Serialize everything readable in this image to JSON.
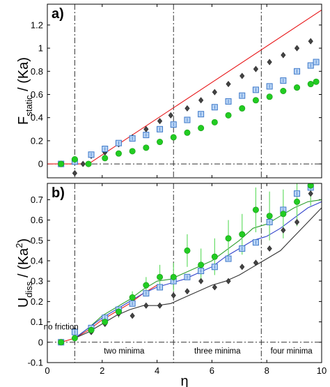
{
  "chart_data": [
    {
      "type": "scatter",
      "panel_label": "a)",
      "ylabel_main": "F",
      "ylabel_sub": "static",
      "ylabel_rest": " / (Ka)",
      "xlim": [
        0,
        10
      ],
      "ylim": [
        -0.12,
        1.38
      ],
      "xticks": [
        0,
        2,
        4,
        6,
        8,
        10
      ],
      "yticks": [
        0,
        0.2,
        0.4,
        0.6,
        0.8,
        1,
        1.2
      ],
      "ytick_labels": [
        "0",
        "0.2",
        "0.4",
        "0.6",
        "0.8",
        "1",
        "1.2"
      ],
      "vlines": [
        1.0,
        4.6,
        7.8
      ],
      "hline": 0,
      "series": [
        {
          "kind": "line",
          "color": "#e8191b",
          "points": [
            [
              0,
              0
            ],
            [
              1,
              0
            ],
            [
              1.5,
              0
            ],
            [
              10,
              1.33
            ]
          ]
        },
        {
          "kind": "diamond",
          "color": "#444444",
          "points": [
            [
              0.5,
              0.0
            ],
            [
              1.0,
              -0.08
            ],
            [
              1.3,
              0.0
            ],
            [
              1.6,
              0.07
            ],
            [
              2.1,
              0.1
            ],
            [
              2.6,
              0.17
            ],
            [
              3.1,
              0.23
            ],
            [
              3.6,
              0.3
            ],
            [
              4.1,
              0.37
            ],
            [
              4.5,
              0.42
            ],
            [
              5.1,
              0.48
            ],
            [
              5.6,
              0.55
            ],
            [
              6.1,
              0.62
            ],
            [
              6.6,
              0.69
            ],
            [
              7.1,
              0.76
            ],
            [
              7.6,
              0.82
            ],
            [
              8.1,
              0.88
            ],
            [
              8.6,
              0.94
            ],
            [
              9.1,
              1.0
            ],
            [
              9.6,
              1.06
            ]
          ]
        },
        {
          "kind": "square",
          "color": "#6aa0e0",
          "points": [
            [
              0.5,
              0.0
            ],
            [
              1.0,
              0.02
            ],
            [
              1.6,
              0.08
            ],
            [
              2.1,
              0.13
            ],
            [
              2.6,
              0.18
            ],
            [
              3.1,
              0.22
            ],
            [
              3.6,
              0.25
            ],
            [
              4.1,
              0.3
            ],
            [
              4.6,
              0.34
            ],
            [
              5.1,
              0.38
            ],
            [
              5.6,
              0.43
            ],
            [
              6.1,
              0.49
            ],
            [
              6.6,
              0.54
            ],
            [
              7.1,
              0.59
            ],
            [
              7.6,
              0.64
            ],
            [
              8.1,
              0.67
            ],
            [
              8.6,
              0.72
            ],
            [
              9.1,
              0.8
            ],
            [
              9.6,
              0.85
            ],
            [
              9.8,
              0.88
            ]
          ]
        },
        {
          "kind": "circle",
          "color": "#22cc22",
          "points": [
            [
              0.5,
              0.0
            ],
            [
              1.0,
              0.04
            ],
            [
              1.5,
              0.0
            ],
            [
              2.1,
              0.05
            ],
            [
              2.6,
              0.09
            ],
            [
              3.1,
              0.11
            ],
            [
              3.6,
              0.14
            ],
            [
              4.1,
              0.19
            ],
            [
              4.6,
              0.23
            ],
            [
              5.1,
              0.27
            ],
            [
              5.6,
              0.31
            ],
            [
              6.1,
              0.36
            ],
            [
              6.6,
              0.42
            ],
            [
              7.1,
              0.48
            ],
            [
              7.6,
              0.55
            ],
            [
              8.1,
              0.58
            ],
            [
              8.6,
              0.63
            ],
            [
              9.1,
              0.66
            ],
            [
              9.6,
              0.69
            ],
            [
              9.8,
              0.71
            ]
          ]
        }
      ]
    },
    {
      "type": "scatter",
      "panel_label": "b)",
      "xlabel": "η",
      "ylabel_main": "U",
      "ylabel_sub": "diss",
      "ylabel_rest": " / (Ka",
      "ylabel_sup": "2",
      "ylabel_end": ")",
      "xlim": [
        0,
        10
      ],
      "ylim": [
        -0.1,
        0.78
      ],
      "xticks": [
        0,
        2,
        4,
        6,
        8,
        10
      ],
      "xtick_labels": [
        "0",
        "2",
        "4",
        "6",
        "8",
        "10"
      ],
      "yticks": [
        -0.1,
        0,
        0.1,
        0.2,
        0.3,
        0.4,
        0.5,
        0.6,
        0.7
      ],
      "ytick_labels": [
        "-0.1",
        "0",
        "0.1",
        "0.2",
        "0.3",
        "0.4",
        "0.5",
        "0.6",
        "0.7"
      ],
      "vlines": [
        1.0,
        4.6,
        7.8
      ],
      "hline": 0,
      "region_labels": [
        "no friction",
        "two minima",
        "three minima",
        "four minima"
      ],
      "series": [
        {
          "kind": "line",
          "color": "#e8191b",
          "points": [
            [
              0.5,
              0.0
            ],
            [
              1.0,
              0.02
            ],
            [
              1.5,
              0.06
            ],
            [
              2.0,
              0.11
            ],
            [
              2.5,
              0.15
            ],
            [
              3.0,
              0.19
            ],
            [
              3.5,
              0.24
            ],
            [
              4.0,
              0.28
            ]
          ]
        },
        {
          "kind": "line",
          "color": "#2e9e2e",
          "points": [
            [
              1.0,
              0.02
            ],
            [
              1.5,
              0.07
            ],
            [
              2.0,
              0.13
            ],
            [
              2.5,
              0.17
            ],
            [
              3.0,
              0.21
            ],
            [
              3.5,
              0.26
            ],
            [
              4.0,
              0.3
            ],
            [
              4.5,
              0.31
            ],
            [
              5.0,
              0.34
            ],
            [
              5.5,
              0.37
            ],
            [
              6.0,
              0.4
            ],
            [
              6.5,
              0.45
            ],
            [
              7.0,
              0.5
            ],
            [
              7.5,
              0.56
            ],
            [
              8.0,
              0.58
            ],
            [
              8.5,
              0.62
            ],
            [
              9.0,
              0.66
            ],
            [
              9.5,
              0.69
            ],
            [
              10.0,
              0.7
            ]
          ]
        },
        {
          "kind": "line",
          "color": "#3344cc",
          "points": [
            [
              1.0,
              0.02
            ],
            [
              1.5,
              0.07
            ],
            [
              2.0,
              0.12
            ],
            [
              2.5,
              0.16
            ],
            [
              3.0,
              0.2
            ],
            [
              3.5,
              0.24
            ],
            [
              4.0,
              0.27
            ],
            [
              4.5,
              0.29
            ],
            [
              5.0,
              0.31
            ],
            [
              5.5,
              0.34
            ],
            [
              6.0,
              0.37
            ],
            [
              6.5,
              0.42
            ],
            [
              7.0,
              0.46
            ],
            [
              7.5,
              0.5
            ],
            [
              8.0,
              0.52
            ],
            [
              8.5,
              0.56
            ],
            [
              9.0,
              0.61
            ],
            [
              9.5,
              0.66
            ],
            [
              10.0,
              0.69
            ]
          ]
        },
        {
          "kind": "line",
          "color": "#333333",
          "points": [
            [
              1.0,
              0.02
            ],
            [
              1.5,
              0.05
            ],
            [
              2.0,
              0.09
            ],
            [
              2.5,
              0.13
            ],
            [
              3.0,
              0.16
            ],
            [
              3.5,
              0.18
            ],
            [
              4.0,
              0.18
            ],
            [
              4.5,
              0.19
            ],
            [
              5.0,
              0.22
            ],
            [
              5.5,
              0.25
            ],
            [
              6.0,
              0.28
            ],
            [
              6.5,
              0.3
            ],
            [
              7.0,
              0.33
            ],
            [
              7.5,
              0.37
            ],
            [
              8.0,
              0.41
            ],
            [
              8.5,
              0.45
            ],
            [
              9.0,
              0.52
            ],
            [
              9.5,
              0.59
            ],
            [
              10.0,
              0.66
            ]
          ]
        },
        {
          "kind": "diamond",
          "color": "#444444",
          "points": [
            [
              0.5,
              0.0
            ],
            [
              1.0,
              0.06
            ],
            [
              1.6,
              0.05
            ],
            [
              2.1,
              0.09
            ],
            [
              2.6,
              0.14
            ],
            [
              3.1,
              0.13
            ],
            [
              3.6,
              0.18
            ],
            [
              4.1,
              0.18
            ],
            [
              4.6,
              0.23
            ],
            [
              5.1,
              0.25
            ],
            [
              5.6,
              0.3
            ],
            [
              6.1,
              0.27
            ],
            [
              6.6,
              0.3
            ],
            [
              7.1,
              0.37
            ],
            [
              7.6,
              0.39
            ],
            [
              8.1,
              0.46
            ],
            [
              8.6,
              0.55
            ],
            [
              9.1,
              0.59
            ],
            [
              9.6,
              0.73
            ]
          ]
        },
        {
          "kind": "square",
          "color": "#6aa0e0",
          "points": [
            [
              0.5,
              0.0
            ],
            [
              1.0,
              0.05
            ],
            [
              1.6,
              0.07
            ],
            [
              2.1,
              0.12
            ],
            [
              2.6,
              0.16
            ],
            [
              3.1,
              0.19
            ],
            [
              3.6,
              0.24
            ],
            [
              4.1,
              0.27
            ],
            [
              4.6,
              0.3
            ],
            [
              5.1,
              0.32
            ],
            [
              5.6,
              0.35
            ],
            [
              6.1,
              0.37
            ],
            [
              6.6,
              0.41
            ],
            [
              7.1,
              0.46
            ],
            [
              7.6,
              0.49
            ],
            [
              8.1,
              0.59
            ],
            [
              8.6,
              0.65
            ],
            [
              9.1,
              0.73
            ],
            [
              9.6,
              0.76
            ]
          ]
        },
        {
          "kind": "circle",
          "color": "#22cc22",
          "errors": true,
          "points": [
            [
              0.5,
              0.0,
              0.0
            ],
            [
              1.0,
              0.02,
              0.01
            ],
            [
              1.6,
              0.06,
              0.02
            ],
            [
              2.1,
              0.1,
              0.02
            ],
            [
              2.6,
              0.15,
              0.03
            ],
            [
              3.1,
              0.22,
              0.03
            ],
            [
              3.6,
              0.28,
              0.04
            ],
            [
              4.1,
              0.32,
              0.06
            ],
            [
              4.6,
              0.32,
              0.07
            ],
            [
              5.1,
              0.45,
              0.08
            ],
            [
              5.6,
              0.38,
              0.08
            ],
            [
              6.1,
              0.42,
              0.09
            ],
            [
              6.6,
              0.51,
              0.09
            ],
            [
              7.1,
              0.53,
              0.1
            ],
            [
              7.6,
              0.65,
              0.11
            ],
            [
              8.1,
              0.62,
              0.12
            ],
            [
              8.6,
              0.63,
              0.12
            ],
            [
              9.1,
              0.69,
              0.12
            ],
            [
              9.6,
              0.77,
              0.1
            ]
          ]
        }
      ]
    }
  ]
}
